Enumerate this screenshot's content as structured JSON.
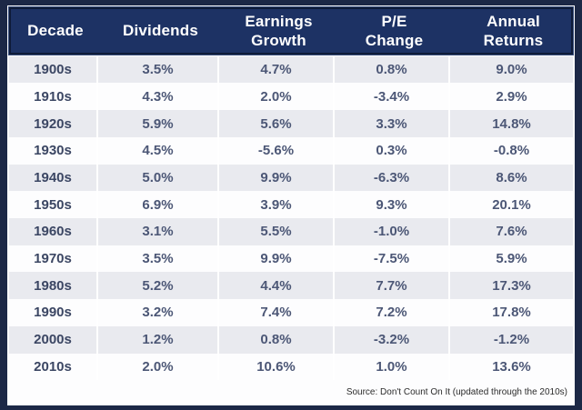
{
  "colors": {
    "frame_navy": "#1c2846",
    "header_navy": "#1d3264",
    "header_border": "#0e1b38",
    "row_gray": "#e9eaef",
    "row_white": "#fdfdfe",
    "header_text": "#ffffff",
    "value_text": "#4c5776",
    "decade_text": "#3b4663"
  },
  "header": {
    "columns": [
      {
        "line1": "Decade",
        "line2": ""
      },
      {
        "line1": "Dividends",
        "line2": ""
      },
      {
        "line1": "Earnings",
        "line2": "Growth"
      },
      {
        "line1": "P/E",
        "line2": "Change"
      },
      {
        "line1": "Annual",
        "line2": "Returns"
      }
    ]
  },
  "table": {
    "rows": [
      {
        "decade": "1900s",
        "dividends": "3.5%",
        "earnings_growth": "4.7%",
        "pe_change": "0.8%",
        "annual_returns": "9.0%"
      },
      {
        "decade": "1910s",
        "dividends": "4.3%",
        "earnings_growth": "2.0%",
        "pe_change": "-3.4%",
        "annual_returns": "2.9%"
      },
      {
        "decade": "1920s",
        "dividends": "5.9%",
        "earnings_growth": "5.6%",
        "pe_change": "3.3%",
        "annual_returns": "14.8%"
      },
      {
        "decade": "1930s",
        "dividends": "4.5%",
        "earnings_growth": "-5.6%",
        "pe_change": "0.3%",
        "annual_returns": "-0.8%"
      },
      {
        "decade": "1940s",
        "dividends": "5.0%",
        "earnings_growth": "9.9%",
        "pe_change": "-6.3%",
        "annual_returns": "8.6%"
      },
      {
        "decade": "1950s",
        "dividends": "6.9%",
        "earnings_growth": "3.9%",
        "pe_change": "9.3%",
        "annual_returns": "20.1%"
      },
      {
        "decade": "1960s",
        "dividends": "3.1%",
        "earnings_growth": "5.5%",
        "pe_change": "-1.0%",
        "annual_returns": "7.6%"
      },
      {
        "decade": "1970s",
        "dividends": "3.5%",
        "earnings_growth": "9.9%",
        "pe_change": "-7.5%",
        "annual_returns": "5.9%"
      },
      {
        "decade": "1980s",
        "dividends": "5.2%",
        "earnings_growth": "4.4%",
        "pe_change": "7.7%",
        "annual_returns": "17.3%"
      },
      {
        "decade": "1990s",
        "dividends": "3.2%",
        "earnings_growth": "7.4%",
        "pe_change": "7.2%",
        "annual_returns": "17.8%"
      },
      {
        "decade": "2000s",
        "dividends": "1.2%",
        "earnings_growth": "0.8%",
        "pe_change": "-3.2%",
        "annual_returns": "-1.2%"
      },
      {
        "decade": "2010s",
        "dividends": "2.0%",
        "earnings_growth": "10.6%",
        "pe_change": "1.0%",
        "annual_returns": "13.6%"
      }
    ]
  },
  "footer": {
    "source": "Source: Don't Count On It (updated through the 2010s)"
  },
  "chart_data": {
    "type": "table",
    "title": "Decade components of S&P annual returns",
    "columns": [
      "Decade",
      "Dividends",
      "Earnings Growth",
      "P/E Change",
      "Annual Returns"
    ],
    "units": "percent",
    "rows": [
      [
        "1900s",
        3.5,
        4.7,
        0.8,
        9.0
      ],
      [
        "1910s",
        4.3,
        2.0,
        -3.4,
        2.9
      ],
      [
        "1920s",
        5.9,
        5.6,
        3.3,
        14.8
      ],
      [
        "1930s",
        4.5,
        -5.6,
        0.3,
        -0.8
      ],
      [
        "1940s",
        5.0,
        9.9,
        -6.3,
        8.6
      ],
      [
        "1950s",
        6.9,
        3.9,
        9.3,
        20.1
      ],
      [
        "1960s",
        3.1,
        5.5,
        -1.0,
        7.6
      ],
      [
        "1970s",
        3.5,
        9.9,
        -7.5,
        5.9
      ],
      [
        "1980s",
        5.2,
        4.4,
        7.7,
        17.3
      ],
      [
        "1990s",
        3.2,
        7.4,
        7.2,
        17.8
      ],
      [
        "2000s",
        1.2,
        0.8,
        -3.2,
        -1.2
      ],
      [
        "2010s",
        2.0,
        10.6,
        1.0,
        13.6
      ]
    ],
    "source": "Source: Don't Count On It (updated through the 2010s)"
  }
}
